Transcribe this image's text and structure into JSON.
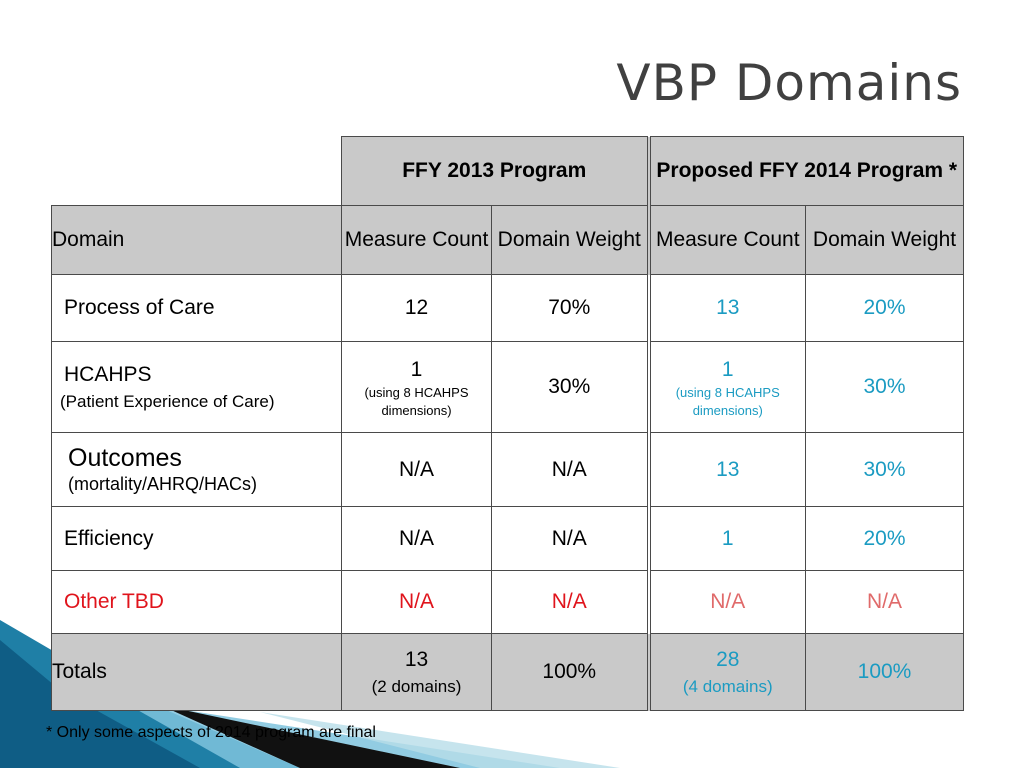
{
  "title": "VBP Domains",
  "headers": {
    "ffy2013": "FFY 2013 Program",
    "ffy2014": "Proposed FFY 2014 Program *",
    "domain": "Domain",
    "measure_count": "Measure Count",
    "domain_weight": "Domain Weight"
  },
  "rows": {
    "process": {
      "label": "Process of Care",
      "c2013": "12",
      "w2013": "70%",
      "c2014": "13",
      "w2014": "20%"
    },
    "hcahps": {
      "label": "HCAHPS",
      "sublabel": "(Patient Experience of Care)",
      "c2013": "1",
      "c2013_note": "(using 8 HCAHPS dimensions)",
      "w2013": "30%",
      "c2014": "1",
      "c2014_note": "(using 8 HCAHPS dimensions)",
      "w2014": "30%"
    },
    "outcomes": {
      "label": "Outcomes",
      "sublabel": "(mortality/AHRQ/HACs)",
      "c2013": "N/A",
      "w2013": "N/A",
      "c2014": "13",
      "w2014": "30%"
    },
    "efficiency": {
      "label": "Efficiency",
      "c2013": "N/A",
      "w2013": "N/A",
      "c2014": "1",
      "w2014": "20%"
    },
    "other": {
      "label": "Other TBD",
      "c2013": "N/A",
      "w2013": "N/A",
      "c2014": "N/A",
      "w2014": "N/A"
    },
    "totals": {
      "label": "Totals",
      "c2013": "13",
      "c2013_note": "(2 domains)",
      "w2013": "100%",
      "c2014": "28",
      "c2014_note": "(4 domains)",
      "w2014": "100%"
    }
  },
  "footnote": "* Only some aspects of 2014 program are final",
  "colors": {
    "proposed_values": "#1b9bc2",
    "other_label": "#e0141c",
    "other_proposed": "#e06a6a",
    "header_fill": "#c9c9c9"
  }
}
